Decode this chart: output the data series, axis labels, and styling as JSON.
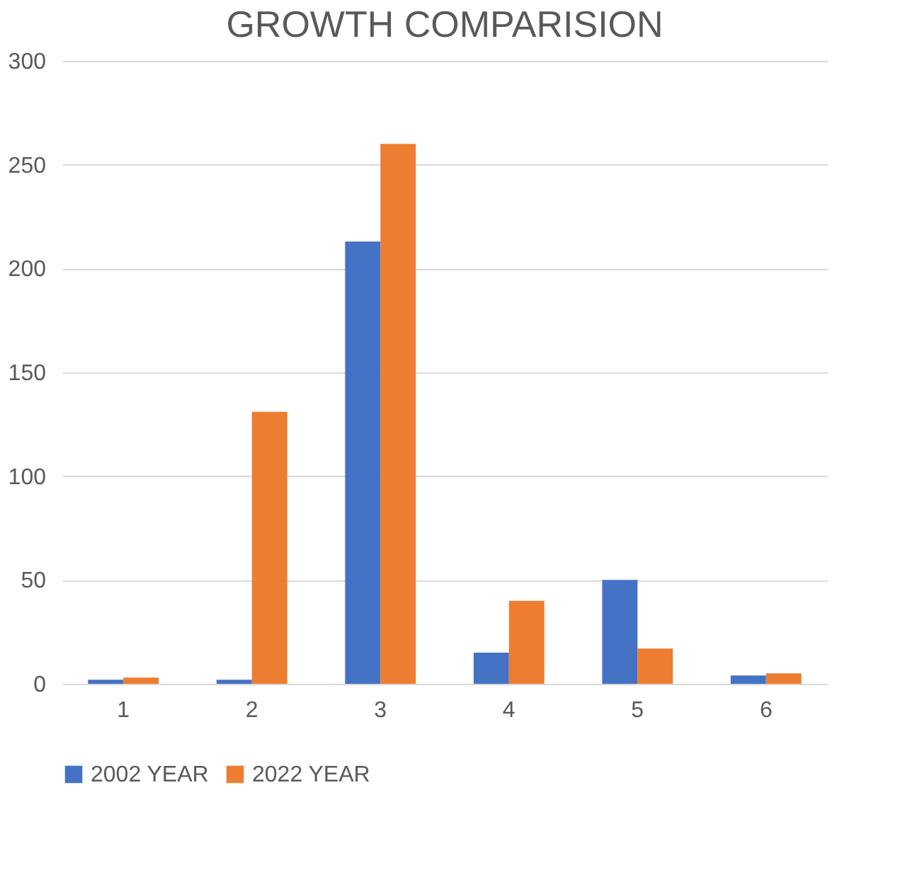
{
  "chart_data": {
    "type": "bar",
    "title": "GROWTH COMPARISION",
    "categories": [
      "1",
      "2",
      "3",
      "4",
      "5",
      "6"
    ],
    "series": [
      {
        "name": "2002 YEAR",
        "color": "#4472c4",
        "values": [
          2,
          2,
          213,
          15,
          50,
          4
        ]
      },
      {
        "name": "2022 YEAR",
        "color": "#ed7d31",
        "values": [
          3,
          131,
          260,
          40,
          17,
          5
        ]
      }
    ],
    "ylim": [
      0,
      300
    ],
    "yticks": [
      0,
      50,
      100,
      150,
      200,
      250,
      300
    ],
    "grid": "y",
    "legend": "bottom"
  }
}
